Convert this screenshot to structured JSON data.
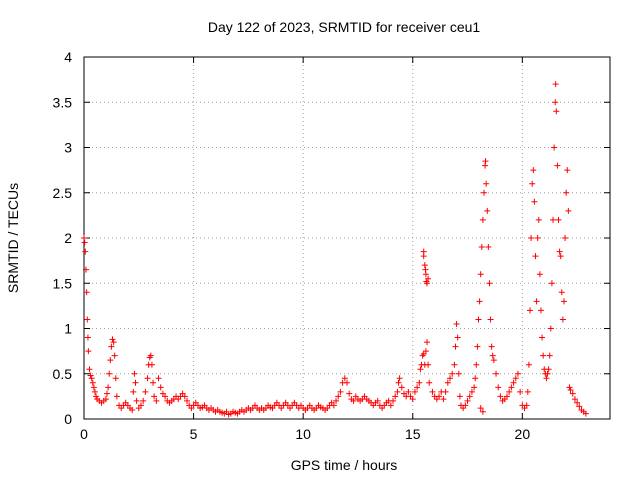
{
  "chart_data": {
    "type": "scatter",
    "title": "Day 122 of 2023, SRMTID for receiver ceu1",
    "xlabel": "GPS time / hours",
    "ylabel": "SRMTID / TECUs",
    "xlim": [
      0,
      24
    ],
    "ylim": [
      0,
      4
    ],
    "xticks": [
      0,
      5,
      10,
      15,
      20
    ],
    "yticks": [
      0,
      0.5,
      1,
      1.5,
      2,
      2.5,
      3,
      3.5,
      4
    ],
    "xtick_labels": [
      "0",
      "5",
      "10",
      "15",
      "20"
    ],
    "ytick_labels": [
      "0",
      "0.5",
      "1",
      "1.5",
      "2",
      "2.5",
      "3",
      "3.5",
      "4"
    ],
    "grid": true,
    "marker": "+",
    "series_color": "#ff0000",
    "series": [
      {
        "name": "SRMTID",
        "points": [
          [
            0.0,
            2.0
          ],
          [
            0.03,
            1.95
          ],
          [
            0.06,
            1.85
          ],
          [
            0.09,
            1.65
          ],
          [
            0.12,
            1.4
          ],
          [
            0.15,
            1.1
          ],
          [
            0.18,
            0.9
          ],
          [
            0.2,
            0.75
          ],
          [
            0.25,
            0.55
          ],
          [
            0.3,
            0.48
          ],
          [
            0.35,
            0.45
          ],
          [
            0.4,
            0.4
          ],
          [
            0.45,
            0.35
          ],
          [
            0.5,
            0.3
          ],
          [
            0.55,
            0.25
          ],
          [
            0.6,
            0.22
          ],
          [
            0.7,
            0.2
          ],
          [
            0.8,
            0.18
          ],
          [
            0.9,
            0.2
          ],
          [
            1.0,
            0.22
          ],
          [
            1.05,
            0.28
          ],
          [
            1.1,
            0.35
          ],
          [
            1.15,
            0.5
          ],
          [
            1.2,
            0.65
          ],
          [
            1.25,
            0.8
          ],
          [
            1.3,
            0.88
          ],
          [
            1.35,
            0.85
          ],
          [
            1.4,
            0.7
          ],
          [
            1.45,
            0.45
          ],
          [
            1.5,
            0.25
          ],
          [
            1.6,
            0.15
          ],
          [
            1.7,
            0.12
          ],
          [
            1.8,
            0.15
          ],
          [
            1.9,
            0.18
          ],
          [
            2.0,
            0.15
          ],
          [
            2.1,
            0.12
          ],
          [
            2.2,
            0.1
          ],
          [
            2.25,
            0.3
          ],
          [
            2.3,
            0.5
          ],
          [
            2.35,
            0.4
          ],
          [
            2.4,
            0.2
          ],
          [
            2.5,
            0.12
          ],
          [
            2.6,
            0.15
          ],
          [
            2.7,
            0.2
          ],
          [
            2.8,
            0.3
          ],
          [
            2.9,
            0.45
          ],
          [
            2.95,
            0.6
          ],
          [
            3.0,
            0.68
          ],
          [
            3.05,
            0.7
          ],
          [
            3.1,
            0.6
          ],
          [
            3.15,
            0.4
          ],
          [
            3.2,
            0.25
          ],
          [
            3.3,
            0.2
          ],
          [
            3.4,
            0.45
          ],
          [
            3.5,
            0.35
          ],
          [
            3.6,
            0.28
          ],
          [
            3.7,
            0.25
          ],
          [
            3.8,
            0.2
          ],
          [
            3.9,
            0.18
          ],
          [
            4.0,
            0.2
          ],
          [
            4.1,
            0.22
          ],
          [
            4.2,
            0.25
          ],
          [
            4.3,
            0.22
          ],
          [
            4.4,
            0.25
          ],
          [
            4.5,
            0.28
          ],
          [
            4.6,
            0.25
          ],
          [
            4.7,
            0.2
          ],
          [
            4.8,
            0.15
          ],
          [
            4.9,
            0.12
          ],
          [
            5.0,
            0.15
          ],
          [
            5.1,
            0.18
          ],
          [
            5.2,
            0.15
          ],
          [
            5.3,
            0.12
          ],
          [
            5.4,
            0.13
          ],
          [
            5.5,
            0.15
          ],
          [
            5.6,
            0.12
          ],
          [
            5.7,
            0.1
          ],
          [
            5.8,
            0.12
          ],
          [
            5.9,
            0.1
          ],
          [
            6.0,
            0.08
          ],
          [
            6.1,
            0.1
          ],
          [
            6.2,
            0.08
          ],
          [
            6.3,
            0.07
          ],
          [
            6.4,
            0.06
          ],
          [
            6.5,
            0.08
          ],
          [
            6.6,
            0.05
          ],
          [
            6.7,
            0.06
          ],
          [
            6.8,
            0.08
          ],
          [
            6.9,
            0.07
          ],
          [
            7.0,
            0.06
          ],
          [
            7.1,
            0.08
          ],
          [
            7.2,
            0.1
          ],
          [
            7.3,
            0.08
          ],
          [
            7.4,
            0.1
          ],
          [
            7.5,
            0.12
          ],
          [
            7.6,
            0.1
          ],
          [
            7.7,
            0.12
          ],
          [
            7.8,
            0.15
          ],
          [
            7.9,
            0.12
          ],
          [
            8.0,
            0.1
          ],
          [
            8.1,
            0.12
          ],
          [
            8.2,
            0.1
          ],
          [
            8.3,
            0.12
          ],
          [
            8.4,
            0.15
          ],
          [
            8.5,
            0.13
          ],
          [
            8.6,
            0.12
          ],
          [
            8.7,
            0.15
          ],
          [
            8.8,
            0.18
          ],
          [
            8.9,
            0.15
          ],
          [
            9.0,
            0.12
          ],
          [
            9.1,
            0.15
          ],
          [
            9.2,
            0.18
          ],
          [
            9.3,
            0.15
          ],
          [
            9.4,
            0.12
          ],
          [
            9.5,
            0.15
          ],
          [
            9.6,
            0.18
          ],
          [
            9.7,
            0.15
          ],
          [
            9.8,
            0.12
          ],
          [
            9.9,
            0.15
          ],
          [
            10.0,
            0.12
          ],
          [
            10.1,
            0.1
          ],
          [
            10.2,
            0.12
          ],
          [
            10.3,
            0.15
          ],
          [
            10.4,
            0.12
          ],
          [
            10.5,
            0.1
          ],
          [
            10.6,
            0.12
          ],
          [
            10.7,
            0.15
          ],
          [
            10.8,
            0.13
          ],
          [
            10.9,
            0.12
          ],
          [
            11.0,
            0.1
          ],
          [
            11.1,
            0.12
          ],
          [
            11.2,
            0.15
          ],
          [
            11.3,
            0.18
          ],
          [
            11.4,
            0.15
          ],
          [
            11.5,
            0.2
          ],
          [
            11.6,
            0.25
          ],
          [
            11.7,
            0.3
          ],
          [
            11.8,
            0.4
          ],
          [
            11.9,
            0.45
          ],
          [
            12.0,
            0.4
          ],
          [
            12.1,
            0.28
          ],
          [
            12.2,
            0.22
          ],
          [
            12.3,
            0.2
          ],
          [
            12.4,
            0.25
          ],
          [
            12.5,
            0.22
          ],
          [
            12.6,
            0.2
          ],
          [
            12.7,
            0.22
          ],
          [
            12.8,
            0.25
          ],
          [
            12.9,
            0.22
          ],
          [
            13.0,
            0.2
          ],
          [
            13.1,
            0.18
          ],
          [
            13.2,
            0.15
          ],
          [
            13.3,
            0.18
          ],
          [
            13.4,
            0.2
          ],
          [
            13.5,
            0.15
          ],
          [
            13.6,
            0.12
          ],
          [
            13.7,
            0.15
          ],
          [
            13.8,
            0.18
          ],
          [
            13.9,
            0.2
          ],
          [
            14.0,
            0.15
          ],
          [
            14.1,
            0.2
          ],
          [
            14.2,
            0.25
          ],
          [
            14.3,
            0.3
          ],
          [
            14.35,
            0.4
          ],
          [
            14.4,
            0.45
          ],
          [
            14.5,
            0.35
          ],
          [
            14.6,
            0.28
          ],
          [
            14.7,
            0.25
          ],
          [
            14.8,
            0.3
          ],
          [
            14.9,
            0.25
          ],
          [
            15.0,
            0.22
          ],
          [
            15.1,
            0.3
          ],
          [
            15.2,
            0.35
          ],
          [
            15.3,
            0.4
          ],
          [
            15.35,
            0.55
          ],
          [
            15.4,
            0.6
          ],
          [
            15.45,
            0.7
          ],
          [
            15.5,
            0.72
          ],
          [
            15.55,
            0.6
          ],
          [
            15.6,
            0.75
          ],
          [
            15.65,
            0.85
          ],
          [
            15.7,
            0.6
          ],
          [
            15.75,
            0.4
          ],
          [
            15.5,
            1.8
          ],
          [
            15.55,
            1.7
          ],
          [
            15.6,
            1.6
          ],
          [
            15.65,
            1.5
          ],
          [
            15.7,
            1.55
          ],
          [
            15.5,
            1.85
          ],
          [
            15.58,
            1.65
          ],
          [
            15.62,
            1.52
          ],
          [
            15.9,
            0.3
          ],
          [
            16.0,
            0.25
          ],
          [
            16.1,
            0.22
          ],
          [
            16.2,
            0.25
          ],
          [
            16.3,
            0.3
          ],
          [
            16.4,
            0.22
          ],
          [
            16.5,
            0.3
          ],
          [
            16.6,
            0.4
          ],
          [
            16.7,
            0.45
          ],
          [
            16.8,
            0.5
          ],
          [
            16.9,
            0.6
          ],
          [
            16.95,
            0.8
          ],
          [
            17.0,
            1.05
          ],
          [
            17.05,
            0.9
          ],
          [
            17.1,
            0.5
          ],
          [
            17.15,
            0.25
          ],
          [
            17.2,
            0.15
          ],
          [
            17.3,
            0.12
          ],
          [
            17.4,
            0.15
          ],
          [
            17.5,
            0.2
          ],
          [
            17.6,
            0.25
          ],
          [
            17.7,
            0.3
          ],
          [
            17.8,
            0.35
          ],
          [
            17.85,
            0.45
          ],
          [
            17.9,
            0.6
          ],
          [
            17.95,
            0.8
          ],
          [
            18.0,
            1.1
          ],
          [
            18.05,
            1.3
          ],
          [
            18.1,
            1.6
          ],
          [
            18.15,
            1.9
          ],
          [
            18.2,
            2.2
          ],
          [
            18.25,
            2.5
          ],
          [
            18.3,
            2.8
          ],
          [
            18.32,
            2.85
          ],
          [
            18.35,
            2.6
          ],
          [
            18.4,
            2.3
          ],
          [
            18.45,
            1.9
          ],
          [
            18.5,
            1.5
          ],
          [
            18.55,
            1.1
          ],
          [
            18.6,
            0.8
          ],
          [
            18.65,
            0.7
          ],
          [
            18.1,
            0.12
          ],
          [
            18.2,
            0.08
          ],
          [
            18.7,
            0.65
          ],
          [
            18.8,
            0.5
          ],
          [
            18.9,
            0.35
          ],
          [
            19.0,
            0.25
          ],
          [
            19.1,
            0.2
          ],
          [
            19.2,
            0.22
          ],
          [
            19.3,
            0.25
          ],
          [
            19.4,
            0.3
          ],
          [
            19.5,
            0.35
          ],
          [
            19.6,
            0.4
          ],
          [
            19.7,
            0.45
          ],
          [
            19.8,
            0.5
          ],
          [
            19.9,
            0.3
          ],
          [
            20.0,
            0.15
          ],
          [
            20.1,
            0.12
          ],
          [
            20.2,
            0.15
          ],
          [
            20.25,
            0.3
          ],
          [
            20.3,
            0.6
          ],
          [
            20.35,
            1.2
          ],
          [
            20.4,
            2.0
          ],
          [
            20.45,
            2.6
          ],
          [
            20.5,
            2.75
          ],
          [
            20.55,
            2.4
          ],
          [
            20.6,
            1.8
          ],
          [
            20.65,
            1.3
          ],
          [
            20.7,
            2.0
          ],
          [
            20.75,
            2.2
          ],
          [
            20.8,
            1.6
          ],
          [
            20.85,
            1.2
          ],
          [
            20.9,
            0.9
          ],
          [
            20.95,
            0.7
          ],
          [
            21.0,
            0.55
          ],
          [
            21.05,
            0.5
          ],
          [
            21.1,
            0.45
          ],
          [
            21.15,
            0.5
          ],
          [
            21.2,
            0.55
          ],
          [
            21.25,
            0.7
          ],
          [
            21.3,
            1.0
          ],
          [
            21.35,
            1.5
          ],
          [
            21.4,
            2.2
          ],
          [
            21.45,
            3.0
          ],
          [
            21.5,
            3.5
          ],
          [
            21.52,
            3.7
          ],
          [
            21.55,
            3.4
          ],
          [
            21.6,
            2.8
          ],
          [
            21.65,
            2.2
          ],
          [
            21.7,
            1.85
          ],
          [
            21.75,
            1.8
          ],
          [
            21.8,
            1.4
          ],
          [
            21.85,
            1.1
          ],
          [
            21.9,
            1.3
          ],
          [
            21.95,
            2.0
          ],
          [
            22.0,
            2.5
          ],
          [
            22.05,
            2.75
          ],
          [
            22.1,
            2.3
          ],
          [
            22.15,
            0.35
          ],
          [
            22.2,
            0.32
          ],
          [
            22.3,
            0.28
          ],
          [
            22.4,
            0.22
          ],
          [
            22.5,
            0.18
          ],
          [
            22.6,
            0.14
          ],
          [
            22.7,
            0.1
          ],
          [
            22.8,
            0.08
          ],
          [
            22.9,
            0.06
          ]
        ]
      }
    ]
  }
}
